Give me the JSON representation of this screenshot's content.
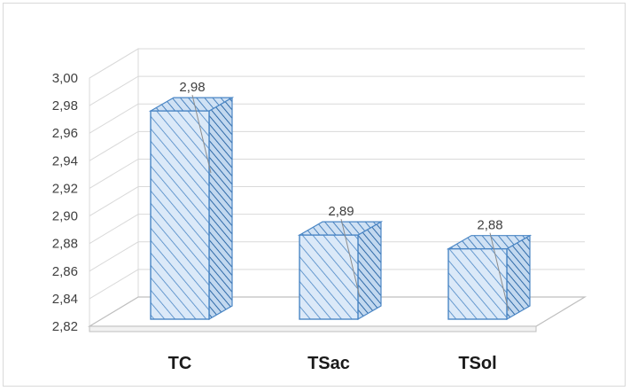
{
  "chart_data": {
    "type": "bar",
    "categories": [
      "TC",
      "TSac",
      "TSol"
    ],
    "values": [
      2.98,
      2.89,
      2.88
    ],
    "value_labels": [
      "2,98",
      "2,89",
      "2,88"
    ],
    "ylim": [
      2.82,
      3.0
    ],
    "yticks": [
      "2,82",
      "2,84",
      "2,86",
      "2,88",
      "2,90",
      "2,92",
      "2,94",
      "2,96",
      "2,98",
      "3,00"
    ],
    "style": "3d-column",
    "fill_pattern": "diagonal-hatch",
    "colors": {
      "bar_fill": "#dbe9f8",
      "bar_stroke": "#4a86c5",
      "hatch": "#4a86c5",
      "gridline": "#d9d9d9"
    },
    "grid": true,
    "legend": "none"
  }
}
